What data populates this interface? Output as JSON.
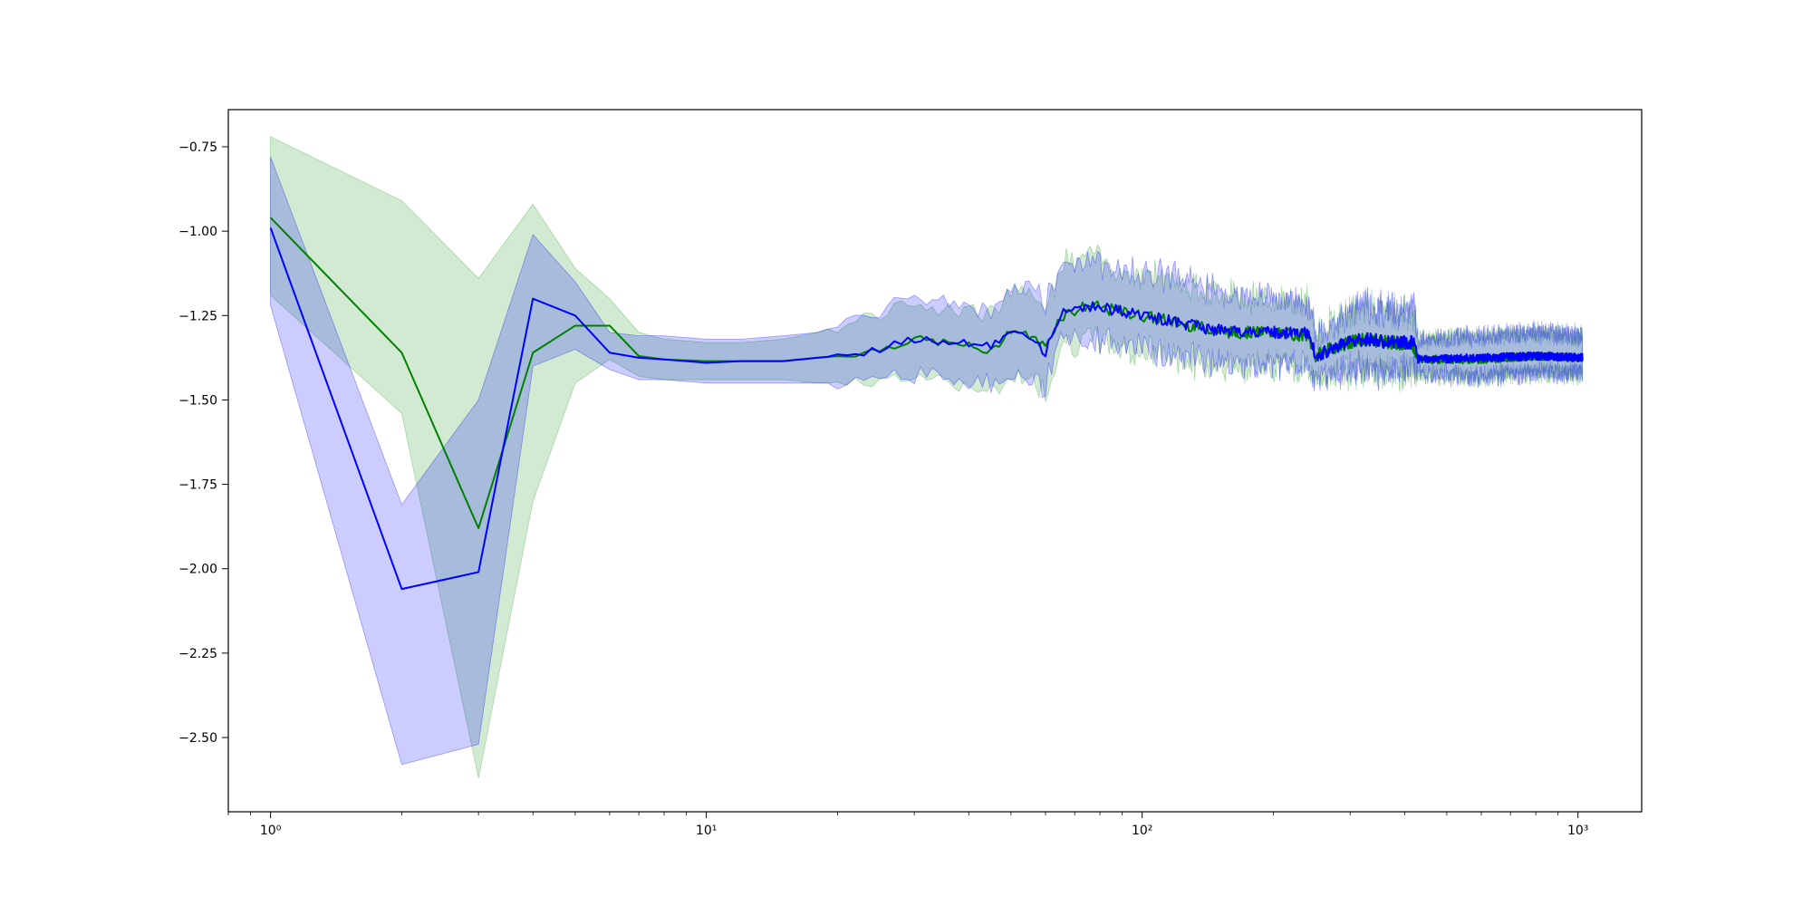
{
  "chart_data": {
    "type": "line",
    "xscale": "log",
    "xlim": [
      0.8,
      1400
    ],
    "ylim": [
      -2.72,
      -0.64
    ],
    "grid": false,
    "legend": "none",
    "x_ticks": [
      {
        "value": 1,
        "label": "10⁰"
      },
      {
        "value": 10,
        "label": "10¹"
      },
      {
        "value": 100,
        "label": "10²"
      },
      {
        "value": 1000,
        "label": "10³"
      }
    ],
    "y_ticks": [
      {
        "value": -0.75,
        "label": "−0.75"
      },
      {
        "value": -1.0,
        "label": "−1.00"
      },
      {
        "value": -1.25,
        "label": "−1.25"
      },
      {
        "value": -1.5,
        "label": "−1.50"
      },
      {
        "value": -1.75,
        "label": "−1.75"
      },
      {
        "value": -2.0,
        "label": "−2.00"
      },
      {
        "value": -2.25,
        "label": "−2.25"
      },
      {
        "value": -2.5,
        "label": "−2.50"
      }
    ],
    "series": [
      {
        "color": "#008000",
        "band_color": "#2ca02c",
        "band_opacity": 0.22,
        "points": [
          {
            "x": 1,
            "y": -0.96,
            "lo": -1.19,
            "hi": -0.72
          },
          {
            "x": 2,
            "y": -1.36,
            "lo": -1.54,
            "hi": -0.91
          },
          {
            "x": 3,
            "y": -1.88,
            "lo": -2.62,
            "hi": -1.14
          },
          {
            "x": 4,
            "y": -1.36,
            "lo": -1.8,
            "hi": -0.92
          },
          {
            "x": 5,
            "y": -1.28,
            "lo": -1.45,
            "hi": -1.11
          },
          {
            "x": 6,
            "y": -1.28,
            "lo": -1.38,
            "hi": -1.2
          },
          {
            "x": 7,
            "y": -1.37,
            "lo": -1.43,
            "hi": -1.3
          },
          {
            "x": 8,
            "y": -1.38,
            "lo": -1.44,
            "hi": -1.32
          },
          {
            "x": 10,
            "y": -1.385,
            "lo": -1.44,
            "hi": -1.33
          },
          {
            "x": 12,
            "y": -1.385,
            "lo": -1.44,
            "hi": -1.33
          },
          {
            "x": 15,
            "y": -1.385,
            "lo": -1.44,
            "hi": -1.32
          },
          {
            "x": 18,
            "y": -1.375,
            "lo": -1.45,
            "hi": -1.3
          },
          {
            "x": 20,
            "y": -1.37,
            "lo": -1.45,
            "hi": -1.28
          },
          {
            "x": 25,
            "y": -1.35,
            "lo": -1.44,
            "hi": -1.24
          },
          {
            "x": 30,
            "y": -1.32,
            "lo": -1.43,
            "hi": -1.21
          },
          {
            "x": 35,
            "y": -1.33,
            "lo": -1.44,
            "hi": -1.23
          },
          {
            "x": 40,
            "y": -1.34,
            "lo": -1.46,
            "hi": -1.23
          },
          {
            "x": 45,
            "y": -1.36,
            "lo": -1.49,
            "hi": -1.25
          },
          {
            "x": 50,
            "y": -1.29,
            "lo": -1.42,
            "hi": -1.19
          },
          {
            "x": 55,
            "y": -1.31,
            "lo": -1.44,
            "hi": -1.17
          },
          {
            "x": 60,
            "y": -1.34,
            "lo": -1.47,
            "hi": -1.22
          },
          {
            "x": 65,
            "y": -1.25,
            "lo": -1.33,
            "hi": -1.1
          },
          {
            "x": 75,
            "y": -1.22,
            "lo": -1.32,
            "hi": -1.07
          },
          {
            "x": 90,
            "y": -1.24,
            "lo": -1.35,
            "hi": -1.12
          },
          {
            "x": 110,
            "y": -1.26,
            "lo": -1.36,
            "hi": -1.13
          },
          {
            "x": 130,
            "y": -1.28,
            "lo": -1.39,
            "hi": -1.16
          },
          {
            "x": 160,
            "y": -1.3,
            "lo": -1.4,
            "hi": -1.19
          },
          {
            "x": 200,
            "y": -1.3,
            "lo": -1.4,
            "hi": -1.2
          },
          {
            "x": 240,
            "y": -1.31,
            "lo": -1.41,
            "hi": -1.21
          },
          {
            "x": 250,
            "y": -1.37,
            "lo": -1.44,
            "hi": -1.31
          },
          {
            "x": 280,
            "y": -1.34,
            "lo": -1.42,
            "hi": -1.27
          },
          {
            "x": 320,
            "y": -1.32,
            "lo": -1.41,
            "hi": -1.22
          },
          {
            "x": 380,
            "y": -1.33,
            "lo": -1.42,
            "hi": -1.24
          },
          {
            "x": 420,
            "y": -1.34,
            "lo": -1.41,
            "hi": -1.24
          },
          {
            "x": 430,
            "y": -1.38,
            "lo": -1.42,
            "hi": -1.32
          },
          {
            "x": 600,
            "y": -1.38,
            "lo": -1.43,
            "hi": -1.31
          },
          {
            "x": 800,
            "y": -1.37,
            "lo": -1.42,
            "hi": -1.3
          },
          {
            "x": 1024,
            "y": -1.375,
            "lo": -1.42,
            "hi": -1.31
          }
        ]
      },
      {
        "color": "#0000ff",
        "band_color": "#0000ff",
        "band_opacity": 0.2,
        "points": [
          {
            "x": 1,
            "y": -0.99,
            "lo": -1.22,
            "hi": -0.78
          },
          {
            "x": 2,
            "y": -2.06,
            "lo": -2.58,
            "hi": -1.81
          },
          {
            "x": 3,
            "y": -2.01,
            "lo": -2.52,
            "hi": -1.5
          },
          {
            "x": 4,
            "y": -1.2,
            "lo": -1.4,
            "hi": -1.01
          },
          {
            "x": 5,
            "y": -1.25,
            "lo": -1.35,
            "hi": -1.15
          },
          {
            "x": 6,
            "y": -1.36,
            "lo": -1.41,
            "hi": -1.3
          },
          {
            "x": 7,
            "y": -1.375,
            "lo": -1.44,
            "hi": -1.31
          },
          {
            "x": 8,
            "y": -1.38,
            "lo": -1.44,
            "hi": -1.31
          },
          {
            "x": 10,
            "y": -1.39,
            "lo": -1.45,
            "hi": -1.32
          },
          {
            "x": 12,
            "y": -1.385,
            "lo": -1.45,
            "hi": -1.32
          },
          {
            "x": 15,
            "y": -1.385,
            "lo": -1.45,
            "hi": -1.31
          },
          {
            "x": 18,
            "y": -1.375,
            "lo": -1.45,
            "hi": -1.3
          },
          {
            "x": 20,
            "y": -1.37,
            "lo": -1.45,
            "hi": -1.28
          },
          {
            "x": 25,
            "y": -1.35,
            "lo": -1.44,
            "hi": -1.24
          },
          {
            "x": 30,
            "y": -1.32,
            "lo": -1.42,
            "hi": -1.2
          },
          {
            "x": 35,
            "y": -1.33,
            "lo": -1.43,
            "hi": -1.22
          },
          {
            "x": 40,
            "y": -1.33,
            "lo": -1.44,
            "hi": -1.22
          },
          {
            "x": 45,
            "y": -1.34,
            "lo": -1.45,
            "hi": -1.24
          },
          {
            "x": 50,
            "y": -1.29,
            "lo": -1.41,
            "hi": -1.18
          },
          {
            "x": 55,
            "y": -1.31,
            "lo": -1.43,
            "hi": -1.16
          },
          {
            "x": 60,
            "y": -1.36,
            "lo": -1.47,
            "hi": -1.21
          },
          {
            "x": 65,
            "y": -1.25,
            "lo": -1.33,
            "hi": -1.1
          },
          {
            "x": 75,
            "y": -1.22,
            "lo": -1.32,
            "hi": -1.08
          },
          {
            "x": 90,
            "y": -1.24,
            "lo": -1.34,
            "hi": -1.12
          },
          {
            "x": 110,
            "y": -1.26,
            "lo": -1.36,
            "hi": -1.13
          },
          {
            "x": 130,
            "y": -1.28,
            "lo": -1.38,
            "hi": -1.15
          },
          {
            "x": 160,
            "y": -1.3,
            "lo": -1.4,
            "hi": -1.19
          },
          {
            "x": 200,
            "y": -1.3,
            "lo": -1.4,
            "hi": -1.2
          },
          {
            "x": 240,
            "y": -1.3,
            "lo": -1.4,
            "hi": -1.21
          },
          {
            "x": 250,
            "y": -1.37,
            "lo": -1.44,
            "hi": -1.31
          },
          {
            "x": 280,
            "y": -1.34,
            "lo": -1.42,
            "hi": -1.27
          },
          {
            "x": 320,
            "y": -1.32,
            "lo": -1.41,
            "hi": -1.22
          },
          {
            "x": 380,
            "y": -1.33,
            "lo": -1.42,
            "hi": -1.24
          },
          {
            "x": 420,
            "y": -1.33,
            "lo": -1.41,
            "hi": -1.23
          },
          {
            "x": 430,
            "y": -1.38,
            "lo": -1.42,
            "hi": -1.32
          },
          {
            "x": 600,
            "y": -1.375,
            "lo": -1.43,
            "hi": -1.31
          },
          {
            "x": 800,
            "y": -1.37,
            "lo": -1.42,
            "hi": -1.3
          },
          {
            "x": 1024,
            "y": -1.375,
            "lo": -1.42,
            "hi": -1.31
          }
        ]
      }
    ]
  }
}
